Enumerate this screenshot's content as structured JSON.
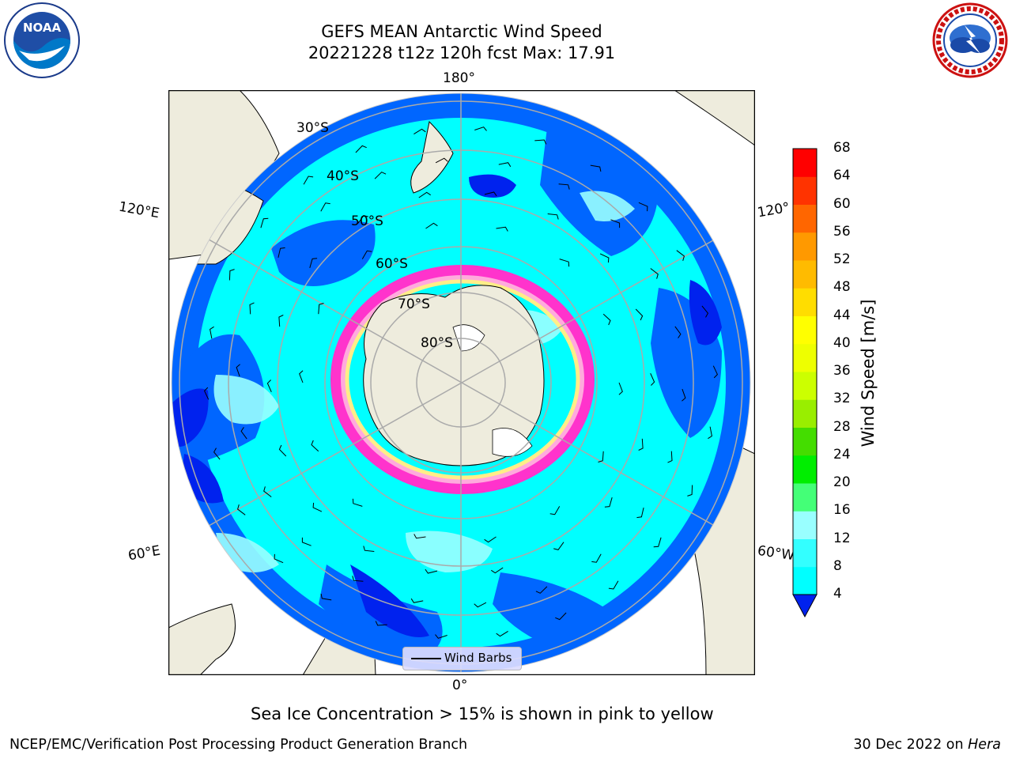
{
  "title": {
    "line1": "GEFS MEAN Antarctic Wind Speed",
    "line2": "20221228 t12z 120h fcst   Max: 17.91"
  },
  "map": {
    "longitude_labels": {
      "top": "180°",
      "bottom": "0°",
      "left_upper": "120°E",
      "left_lower": "60°E",
      "right_upper": "120°",
      "right_lower": "60°W"
    },
    "latitude_labels": [
      "30°S",
      "40°S",
      "50°S",
      "60°S",
      "70°S",
      "80°S"
    ],
    "legend_label": "Wind Barbs",
    "colors": {
      "land": "#eeecdd",
      "ice_edge": "#ff33cc",
      "ice_mid": "#ffaadd",
      "ice_core": "#ffee88"
    }
  },
  "colorbar": {
    "title": "Wind Speed [m/s]",
    "ticks": [
      "4",
      "8",
      "12",
      "16",
      "20",
      "24",
      "28",
      "32",
      "36",
      "40",
      "44",
      "48",
      "52",
      "56",
      "60",
      "64",
      "68"
    ],
    "colors": [
      "#0066ff",
      "#00ffff",
      "#33ffff",
      "#99ffff",
      "#44ff77",
      "#00ee00",
      "#44dd00",
      "#99ee00",
      "#ccff00",
      "#eeff00",
      "#ffff00",
      "#ffdd00",
      "#ffbb00",
      "#ff9900",
      "#ff6600",
      "#ff3300",
      "#ff0000"
    ],
    "extend_color": "#0022ee"
  },
  "caption": "Sea Ice Concentration > 15% is shown in pink to yellow",
  "footer": {
    "left": "NCEP/EMC/Verification Post Processing Product Generation Branch",
    "date": "30 Dec 2022 on ",
    "machine": "Hera"
  },
  "logos": {
    "noaa": "NOAA",
    "nws": "NATIONAL WEATHER SERVICE"
  }
}
